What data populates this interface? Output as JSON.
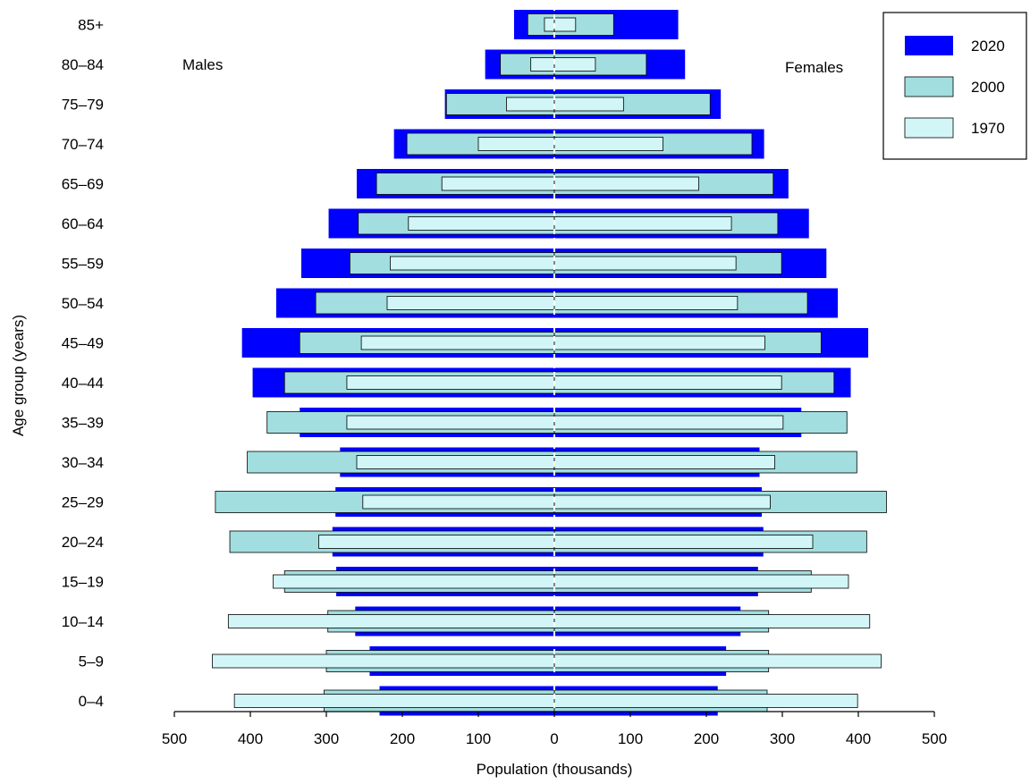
{
  "chart_data": {
    "type": "bar",
    "subtype": "population-pyramid",
    "xlabel": "Population (thousands)",
    "ylabel": "Age group (years)",
    "left_label": "Males",
    "right_label": "Females",
    "xlim": [
      -500,
      500
    ],
    "xticks": [
      -500,
      -400,
      -300,
      -200,
      -100,
      0,
      100,
      200,
      300,
      400,
      500
    ],
    "xtick_labels": [
      "500",
      "400",
      "300",
      "200",
      "100",
      "0",
      "100",
      "200",
      "300",
      "400",
      "500"
    ],
    "categories": [
      "0–4",
      "5–9",
      "10–14",
      "15–19",
      "20–24",
      "25–29",
      "30–34",
      "35–39",
      "40–44",
      "45–49",
      "50–54",
      "55–59",
      "60–64",
      "65–69",
      "70–74",
      "75–79",
      "80–84",
      "85+"
    ],
    "legend_position": "top-right",
    "series": [
      {
        "name": "2020",
        "color": "#0000ff",
        "males": [
          230,
          243,
          262,
          287,
          292,
          288,
          282,
          335,
          397,
          411,
          366,
          333,
          297,
          260,
          211,
          144,
          91,
          53
        ],
        "females": [
          215,
          226,
          245,
          268,
          275,
          273,
          270,
          325,
          390,
          413,
          373,
          358,
          335,
          308,
          276,
          219,
          172,
          163
        ]
      },
      {
        "name": "2000",
        "color": "#a2dedf",
        "males": [
          303,
          300,
          298,
          355,
          427,
          446,
          404,
          378,
          355,
          335,
          314,
          269,
          258,
          234,
          194,
          142,
          71,
          35
        ],
        "females": [
          280,
          282,
          282,
          338,
          411,
          437,
          398,
          385,
          368,
          351,
          333,
          299,
          294,
          288,
          260,
          205,
          121,
          78
        ]
      },
      {
        "name": "1970",
        "color": "#d2f6f7",
        "males": [
          421,
          450,
          429,
          370,
          310,
          252,
          260,
          273,
          273,
          254,
          220,
          216,
          192,
          148,
          100,
          63,
          31,
          13
        ],
        "females": [
          399,
          430,
          415,
          387,
          340,
          284,
          290,
          301,
          299,
          277,
          241,
          239,
          233,
          190,
          143,
          91,
          54,
          28
        ]
      }
    ]
  }
}
